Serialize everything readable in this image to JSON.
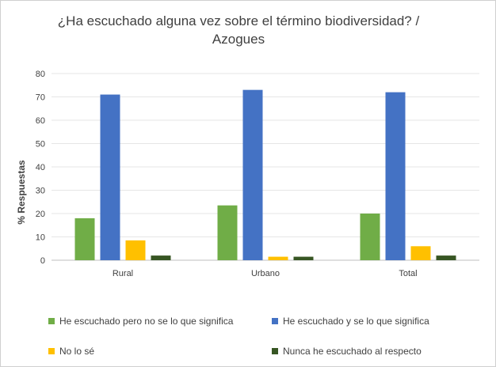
{
  "chart_data": {
    "type": "bar",
    "title_lines": [
      "¿Ha escuchado alguna vez sobre el término biodiversidad? /",
      "Azogues"
    ],
    "xlabel": "",
    "ylabel": "% Respuestas",
    "ylim": [
      0,
      80
    ],
    "yticks": [
      0,
      10,
      20,
      30,
      40,
      50,
      60,
      70,
      80
    ],
    "grid": true,
    "legend_position": "bottom",
    "categories": [
      "Rural",
      "Urbano",
      "Total"
    ],
    "series": [
      {
        "name": "He escuchado pero no se lo que significa",
        "color": "#70ad47",
        "values": [
          18,
          23.5,
          20
        ]
      },
      {
        "name": "He escuchado y se lo que significa",
        "color": "#4472c4",
        "values": [
          71,
          73,
          72
        ]
      },
      {
        "name": "No lo sé",
        "color": "#ffc000",
        "values": [
          8.5,
          1.5,
          6
        ]
      },
      {
        "name": "Nunca he escuchado al respecto",
        "color": "#375623",
        "values": [
          2,
          1.5,
          2
        ]
      }
    ]
  }
}
